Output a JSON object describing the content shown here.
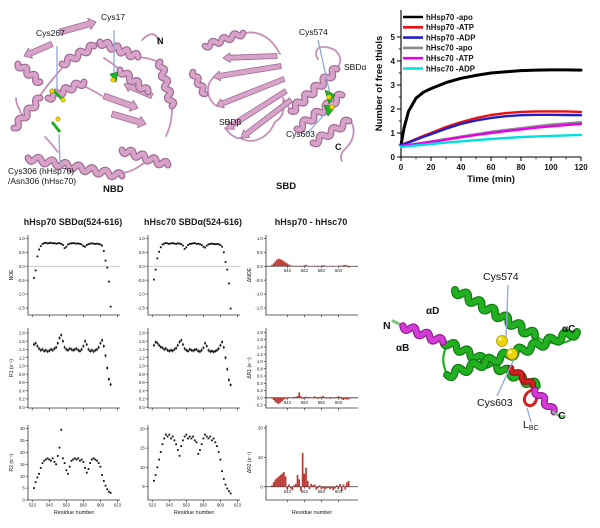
{
  "figure": {
    "structures": {
      "nbd": {
        "cys267": "Cys267",
        "cys17": "Cys17",
        "n_term": "N",
        "cys306_line1": "Cys306 (hHsp70)",
        "cys306_line2": "/Asn306 (hHsc70)",
        "caption": "NBD"
      },
      "sbd": {
        "cys574": "Cys574",
        "sbd_alpha": "SBDα",
        "sbd_beta": "SBDβ",
        "cys603": "Cys603",
        "c_term": "C",
        "caption": "SBD"
      },
      "sbda_zoom": {
        "cys574": "Cys574",
        "cys603": "Cys603",
        "n_term": "N",
        "c_term": "C",
        "helix_b": "αB",
        "helix_c": "αC",
        "helix_d": "αD",
        "loop_label": "L",
        "loop_label_sub": "BC"
      }
    },
    "relaxation_titles": [
      "hHsp70 SBDα(524-616)",
      "hHsc70 SBDα(524-616)",
      "hHsp70 - hHsc70"
    ],
    "colors": {
      "ribbon_pink": "#d8a3c8",
      "ribbon_green": "#22b022",
      "ribbon_magenta": "#d43bd4",
      "ribbon_red": "#d02020",
      "sulfur_yellow": "#ecd405",
      "leader_blue": "#8fa8dc",
      "bar_red": "#b83b35"
    }
  },
  "residue_axis": [
    525,
    527,
    529,
    531,
    533,
    535,
    537,
    539,
    541,
    543,
    545,
    547,
    549,
    551,
    553,
    555,
    557,
    559,
    561,
    563,
    565,
    567,
    569,
    571,
    573,
    575,
    577,
    579,
    581,
    583,
    585,
    587,
    589,
    591,
    593,
    595,
    597,
    599,
    601,
    603,
    605,
    607,
    609,
    611,
    613,
    615
  ],
  "chart_data": [
    {
      "id": "thiol_free",
      "type": "line",
      "title": "",
      "xlabel": "Time (min)",
      "ylabel": "Number of free thiols",
      "xlim": [
        0,
        120
      ],
      "ylim": [
        0,
        5
      ],
      "xticks": [
        0,
        20,
        40,
        60,
        80,
        100,
        120
      ],
      "yticks": [
        0,
        1,
        2,
        3,
        4,
        5
      ],
      "legend_position": "top-left-inside",
      "x": [
        0,
        2,
        5,
        10,
        15,
        20,
        30,
        40,
        50,
        60,
        70,
        80,
        90,
        100,
        110,
        120
      ],
      "series": [
        {
          "name": "hHsp70 -apo",
          "color": "#000000",
          "values": [
            0.5,
            1.2,
            1.9,
            2.45,
            2.7,
            2.85,
            3.1,
            3.28,
            3.4,
            3.5,
            3.55,
            3.6,
            3.62,
            3.63,
            3.63,
            3.62
          ]
        },
        {
          "name": "hHsp70 -ATP",
          "color": "#e81010",
          "values": [
            0.5,
            0.55,
            0.62,
            0.75,
            0.88,
            1.0,
            1.25,
            1.45,
            1.62,
            1.75,
            1.83,
            1.88,
            1.9,
            1.9,
            1.9,
            1.88
          ]
        },
        {
          "name": "hHsp70 -ADP",
          "color": "#2020c8",
          "values": [
            0.5,
            0.54,
            0.6,
            0.72,
            0.84,
            0.95,
            1.18,
            1.38,
            1.52,
            1.63,
            1.7,
            1.74,
            1.76,
            1.76,
            1.75,
            1.74
          ]
        },
        {
          "name": "hHsc70 -apo",
          "color": "#8a8a8a",
          "values": [
            0.45,
            0.47,
            0.5,
            0.55,
            0.6,
            0.65,
            0.75,
            0.85,
            0.95,
            1.05,
            1.13,
            1.2,
            1.28,
            1.35,
            1.4,
            1.45
          ]
        },
        {
          "name": "hHsc70 -ATP",
          "color": "#e800e8",
          "values": [
            0.45,
            0.47,
            0.49,
            0.54,
            0.58,
            0.63,
            0.72,
            0.82,
            0.92,
            1.0,
            1.08,
            1.15,
            1.22,
            1.28,
            1.33,
            1.38
          ]
        },
        {
          "name": "hHsc70 -ADP",
          "color": "#00dede",
          "values": [
            0.42,
            0.43,
            0.45,
            0.48,
            0.51,
            0.54,
            0.6,
            0.65,
            0.7,
            0.75,
            0.79,
            0.83,
            0.86,
            0.88,
            0.9,
            0.92
          ]
        }
      ]
    },
    {
      "id": "noe_hsp70",
      "type": "scatter",
      "ylabel": "NOE",
      "ylim": [
        -1.75,
        1.12
      ],
      "yticks": [
        "1.0",
        "0.5",
        "0.0",
        "-0.5",
        "-1.0",
        "-1.5"
      ],
      "xlim": [
        518,
        626
      ],
      "xticks": [
        523,
        543,
        563,
        583,
        603,
        623
      ],
      "xtick_labels": "none",
      "zero_line": true,
      "values": [
        -0.42,
        -0.15,
        0.35,
        0.6,
        0.72,
        0.8,
        0.83,
        0.84,
        0.82,
        0.83,
        0.84,
        0.82,
        0.83,
        0.81,
        0.82,
        0.83,
        0.8,
        0.76,
        0.65,
        0.7,
        0.78,
        0.81,
        0.82,
        0.83,
        0.82,
        0.81,
        0.82,
        0.8,
        0.78,
        0.72,
        0.7,
        0.76,
        0.79,
        0.81,
        0.82,
        0.81,
        0.8,
        0.81,
        0.8,
        0.78,
        0.74,
        0.55,
        0.2,
        -0.05,
        -0.55,
        -1.45
      ]
    },
    {
      "id": "noe_hsc70",
      "type": "scatter",
      "ylabel": "",
      "ylim": [
        -1.75,
        1.12
      ],
      "yticks": [
        "1.0",
        "0.5",
        "0.0",
        "-0.5",
        "-1.0",
        "-1.5"
      ],
      "xlim": [
        518,
        626
      ],
      "xticks": [
        523,
        543,
        563,
        583,
        603,
        623
      ],
      "xtick_labels": "none",
      "zero_line": true,
      "values": [
        -0.48,
        -0.12,
        0.28,
        0.52,
        0.68,
        0.78,
        0.81,
        0.83,
        0.82,
        0.8,
        0.82,
        0.83,
        0.81,
        0.8,
        0.82,
        0.81,
        0.79,
        0.74,
        0.62,
        0.68,
        0.76,
        0.8,
        0.81,
        0.82,
        0.83,
        0.8,
        0.81,
        0.79,
        0.76,
        0.7,
        0.67,
        0.74,
        0.78,
        0.8,
        0.81,
        0.8,
        0.79,
        0.8,
        0.79,
        0.76,
        0.7,
        0.5,
        0.15,
        -0.12,
        -0.62,
        -1.52
      ]
    },
    {
      "id": "dnoe",
      "type": "bars",
      "ylabel": "ΔNOE",
      "bar_color": "#b83b35",
      "ylim": [
        -1.75,
        1.12
      ],
      "yticks": [
        "1.0",
        "0.5",
        "0.0",
        "-0.5",
        "-1.0",
        "-1.5"
      ],
      "xlim": [
        518,
        626
      ],
      "xticks": [
        543,
        563,
        583,
        603
      ],
      "xtick_labels": "zero",
      "values": [
        0.05,
        0.1,
        0.18,
        0.24,
        0.27,
        0.25,
        0.22,
        0.18,
        0.14,
        0.1,
        0.06,
        0.03,
        0.02,
        0.01,
        -0.01,
        0.02,
        0.01,
        -0.02,
        0.01,
        0.03,
        0.05,
        0.02,
        0.01,
        -0.01,
        0.01,
        0.02,
        0.01,
        -0.02,
        0.01,
        0.02,
        0.04,
        0.02,
        0.01,
        -0.01,
        0.01,
        0.02,
        0.01,
        -0.01,
        0.01,
        0.02,
        0.03,
        -0.02,
        0.04,
        0.05,
        0.03,
        -0.05
      ]
    },
    {
      "id": "r1_hsp70",
      "type": "scatter",
      "ylabel": "R1 (s⁻¹)",
      "err": 0.045,
      "ylim": [
        -0.02,
        1.92
      ],
      "yticks": [
        "1.8",
        "1.6",
        "1.4",
        "1.2",
        "1.0",
        "0.8",
        "0.6",
        "0.4",
        "0.2",
        "0.0"
      ],
      "xlim": [
        518,
        626
      ],
      "xticks": [
        523,
        543,
        563,
        583,
        603,
        623
      ],
      "xtick_labels": "none",
      "values": [
        1.52,
        1.55,
        1.48,
        1.42,
        1.38,
        1.4,
        1.36,
        1.38,
        1.35,
        1.37,
        1.4,
        1.38,
        1.42,
        1.45,
        1.55,
        1.68,
        1.75,
        1.6,
        1.45,
        1.4,
        1.38,
        1.42,
        1.4,
        1.38,
        1.4,
        1.42,
        1.38,
        1.36,
        1.4,
        1.48,
        1.6,
        1.52,
        1.4,
        1.36,
        1.38,
        1.35,
        1.38,
        1.4,
        1.45,
        1.55,
        1.62,
        1.48,
        1.25,
        0.95,
        0.68,
        0.55
      ]
    },
    {
      "id": "r1_hsc70",
      "type": "scatter",
      "ylabel": "",
      "err": 0.045,
      "ylim": [
        -0.02,
        1.92
      ],
      "yticks": [
        "1.8",
        "1.6",
        "1.4",
        "1.2",
        "1.0",
        "0.8",
        "0.6",
        "0.4",
        "0.2",
        "0.0"
      ],
      "xlim": [
        518,
        626
      ],
      "xticks": [
        523,
        543,
        563,
        583,
        603,
        623
      ],
      "xtick_labels": "none",
      "values": [
        1.5,
        1.58,
        1.55,
        1.5,
        1.46,
        1.44,
        1.4,
        1.42,
        1.38,
        1.36,
        1.38,
        1.37,
        1.4,
        1.43,
        1.5,
        1.58,
        1.62,
        1.52,
        1.42,
        1.38,
        1.36,
        1.4,
        1.38,
        1.37,
        1.39,
        1.4,
        1.36,
        1.35,
        1.38,
        1.44,
        1.55,
        1.48,
        1.38,
        1.35,
        1.36,
        1.34,
        1.36,
        1.38,
        1.42,
        1.5,
        1.58,
        1.45,
        1.2,
        0.92,
        0.66,
        0.54
      ]
    },
    {
      "id": "dr1",
      "type": "bars",
      "ylabel": "ΔR1 (s⁻¹)",
      "bar_color": "#b83b35",
      "ylim": [
        -0.28,
        1.92
      ],
      "yticks": [
        "1.8",
        "1.6",
        "1.4",
        "1.2",
        "1.0",
        "0.8",
        "0.6",
        "0.4",
        "0.2",
        "0.0",
        "-0.2"
      ],
      "xlim": [
        518,
        626
      ],
      "xticks": [
        543,
        563,
        583,
        603
      ],
      "xtick_labels": "zero",
      "values": [
        -0.02,
        -0.06,
        -0.12,
        -0.15,
        -0.17,
        -0.13,
        -0.09,
        -0.05,
        -0.03,
        -0.02,
        0.02,
        0.01,
        -0.02,
        0.03,
        0.02,
        0.05,
        0.15,
        0.04,
        -0.03,
        0.02,
        0.03,
        -0.02,
        0.02,
        0.01,
        -0.02,
        0.04,
        0.02,
        -0.03,
        0.02,
        0.03,
        0.05,
        0.02,
        -0.02,
        0.01,
        -0.03,
        0.02,
        0.01,
        -0.02,
        0.02,
        0.04,
        0.03,
        -0.04,
        -0.06,
        -0.03,
        -0.05,
        -0.04
      ]
    },
    {
      "id": "r2_hsp70",
      "type": "scatter",
      "ylabel": "R2 (s⁻¹)",
      "xlabel": "Residue number",
      "ylim": [
        0,
        31.5
      ],
      "yticks": [
        "30",
        "25",
        "20",
        "15",
        "10",
        "5",
        "0"
      ],
      "xlim": [
        518,
        626
      ],
      "xticks": [
        523,
        543,
        563,
        583,
        603,
        623
      ],
      "xtick_labels": "bottom",
      "values": [
        5.0,
        7.5,
        9.5,
        11.0,
        13.5,
        15.5,
        16.5,
        17.0,
        17.5,
        17.0,
        16.5,
        17.5,
        16.0,
        15.0,
        18.5,
        22.0,
        29.5,
        17.5,
        15.5,
        12.5,
        11.0,
        14.0,
        16.5,
        17.0,
        17.5,
        17.0,
        17.5,
        16.5,
        17.0,
        16.0,
        13.5,
        11.5,
        13.0,
        15.5,
        17.0,
        17.5,
        17.0,
        16.5,
        15.5,
        14.0,
        10.5,
        8.0,
        6.0,
        4.5,
        3.5,
        3.0
      ]
    },
    {
      "id": "r2_hsc70",
      "type": "scatter",
      "ylabel": "",
      "xlabel": "Residue number",
      "ylim": [
        1.5,
        21
      ],
      "yticks": [
        "20",
        "15",
        "10",
        "5"
      ],
      "xlim": [
        518,
        626
      ],
      "xticks": [
        523,
        543,
        563,
        583,
        603,
        623
      ],
      "xtick_labels": "bottom",
      "values": [
        6.5,
        8.0,
        10.0,
        12.0,
        14.0,
        16.0,
        17.5,
        18.5,
        18.0,
        18.5,
        17.5,
        18.0,
        17.0,
        16.0,
        14.5,
        13.0,
        15.5,
        17.0,
        18.0,
        18.5,
        17.5,
        18.0,
        17.5,
        18.0,
        17.0,
        16.5,
        13.5,
        14.5,
        16.0,
        17.5,
        18.5,
        18.0,
        17.5,
        18.0,
        17.0,
        17.5,
        16.5,
        15.5,
        14.0,
        12.0,
        9.0,
        7.0,
        5.5,
        4.5,
        3.8,
        3.2
      ]
    },
    {
      "id": "dr2",
      "type": "bars",
      "ylabel": "ΔR2 (s⁻¹)",
      "xlabel": "Residue number",
      "bar_color": "#b83b35",
      "ylim": [
        -4.5,
        21
      ],
      "yticks": [
        "20",
        "10",
        "0"
      ],
      "xlim": [
        518,
        626
      ],
      "xticks": [
        543,
        563,
        583,
        603
      ],
      "xtick_labels": "zero",
      "values": [
        0.5,
        1.5,
        2.5,
        3.0,
        3.5,
        4.0,
        4.5,
        5.0,
        3.5,
        -1.0,
        0.8,
        -0.6,
        -1.2,
        0.5,
        1.0,
        4.0,
        2.5,
        -1.5,
        11.5,
        4.5,
        6.5,
        2.0,
        -0.8,
        1.0,
        0.5,
        0.8,
        -1.0,
        -0.5,
        0.5,
        -0.8,
        -0.5,
        -1.0,
        -0.6,
        -0.4,
        -0.8,
        -0.5,
        -1.2,
        -0.6,
        0.5,
        -0.8,
        1.0,
        -1.5,
        0.8,
        -1.0,
        1.5,
        2.0
      ]
    }
  ]
}
